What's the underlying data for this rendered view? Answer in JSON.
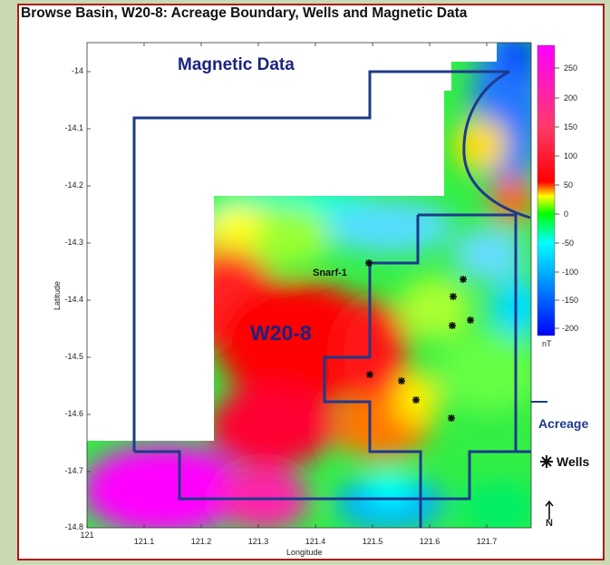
{
  "title": "Browse Basin, W20-8: Acreage Boundary, Wells and Magnetic Data",
  "map": {
    "overlay_title": "Magnetic Data",
    "block_label": "W20-8",
    "well_name": "Snarf-1",
    "xlabel": "Longitude",
    "ylabel": "Latitude",
    "xticks": [
      "121",
      "121.1",
      "121.2",
      "121.3",
      "121.4",
      "121.5",
      "121.6",
      "121.7"
    ],
    "yticks": [
      "-14",
      "-14.1",
      "-14.2",
      "-14.3",
      "-14.4",
      "-14.5",
      "-14.6",
      "-14.7",
      "-14.8"
    ]
  },
  "colorbar": {
    "ticks": [
      "250",
      "200",
      "150",
      "100",
      "50",
      "0",
      "-50",
      "-100",
      "-150",
      "-200"
    ],
    "unit": "nT",
    "colors": [
      "#ff00ff",
      "#ff0000",
      "#ffff00",
      "#00ff00",
      "#00ffff",
      "#0000ff"
    ]
  },
  "legend": {
    "acreage_label": "Acreage",
    "wells_label": "Wells",
    "acreage_color": "#1e3a8a"
  },
  "north_label": "N"
}
